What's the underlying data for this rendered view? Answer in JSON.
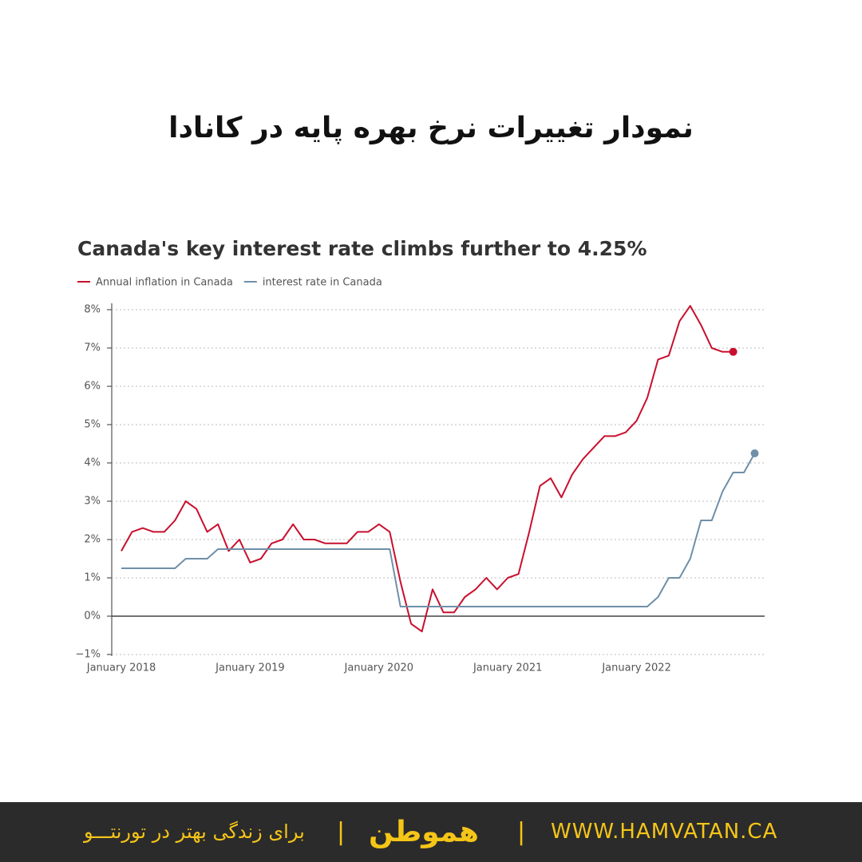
{
  "header": {
    "title": "نمودار تغییرات نرخ بهره پایه در کانادا"
  },
  "chart_data": {
    "type": "line",
    "title": "Canada's key interest rate climbs further to 4.25%",
    "categories": [
      "January 2018",
      null,
      null,
      null,
      null,
      null,
      null,
      null,
      null,
      null,
      null,
      null,
      "January 2019",
      null,
      null,
      null,
      null,
      null,
      null,
      null,
      null,
      null,
      null,
      null,
      "January 2020",
      null,
      null,
      null,
      null,
      null,
      null,
      null,
      null,
      null,
      null,
      null,
      "January 2021",
      null,
      null,
      null,
      null,
      null,
      null,
      null,
      null,
      null,
      null,
      null,
      "January 2022",
      null,
      null,
      null,
      null,
      null,
      null,
      null,
      null,
      null,
      null,
      null
    ],
    "series": [
      {
        "name": "Annual inflation in Canada",
        "color": "#c8102e",
        "values": [
          1.7,
          2.2,
          2.3,
          2.2,
          2.2,
          2.5,
          3.0,
          2.8,
          2.2,
          2.4,
          1.7,
          2.0,
          1.4,
          1.5,
          1.9,
          2.0,
          2.4,
          2.0,
          2.0,
          1.9,
          1.9,
          1.9,
          2.2,
          2.2,
          2.4,
          2.2,
          0.9,
          -0.2,
          -0.4,
          0.7,
          0.1,
          0.1,
          0.5,
          0.7,
          1.0,
          0.7,
          1.0,
          1.1,
          2.2,
          3.4,
          3.6,
          3.1,
          3.7,
          4.1,
          4.4,
          4.7,
          4.7,
          4.8,
          5.1,
          5.7,
          6.7,
          6.8,
          7.7,
          8.1,
          7.6,
          7.0,
          6.9,
          6.9,
          null,
          null
        ]
      },
      {
        "name": "interest rate in Canada",
        "color": "#6f8fa8",
        "values": [
          1.25,
          1.25,
          1.25,
          1.25,
          1.25,
          1.25,
          1.5,
          1.5,
          1.5,
          1.75,
          1.75,
          1.75,
          1.75,
          1.75,
          1.75,
          1.75,
          1.75,
          1.75,
          1.75,
          1.75,
          1.75,
          1.75,
          1.75,
          1.75,
          1.75,
          1.75,
          0.25,
          0.25,
          0.25,
          0.25,
          0.25,
          0.25,
          0.25,
          0.25,
          0.25,
          0.25,
          0.25,
          0.25,
          0.25,
          0.25,
          0.25,
          0.25,
          0.25,
          0.25,
          0.25,
          0.25,
          0.25,
          0.25,
          0.25,
          0.25,
          0.5,
          1.0,
          1.0,
          1.5,
          2.5,
          2.5,
          3.25,
          3.75,
          3.75,
          4.25
        ]
      }
    ],
    "ylim": [
      -1,
      8
    ],
    "yticks": [
      {
        "value": -1,
        "label": "−1%"
      },
      {
        "value": 0,
        "label": "0%"
      },
      {
        "value": 1,
        "label": "1%"
      },
      {
        "value": 2,
        "label": "2%"
      },
      {
        "value": 3,
        "label": "3%"
      },
      {
        "value": 4,
        "label": "4%"
      },
      {
        "value": 5,
        "label": "5%"
      },
      {
        "value": 6,
        "label": "6%"
      },
      {
        "value": 7,
        "label": "7%"
      },
      {
        "value": 8,
        "label": "8%"
      }
    ],
    "grid": true
  },
  "footer": {
    "tagline": "برای زندگی بهتر در تورنتـــو",
    "logo": "هموطن",
    "website": "WWW.HAMVATAN.CA"
  }
}
